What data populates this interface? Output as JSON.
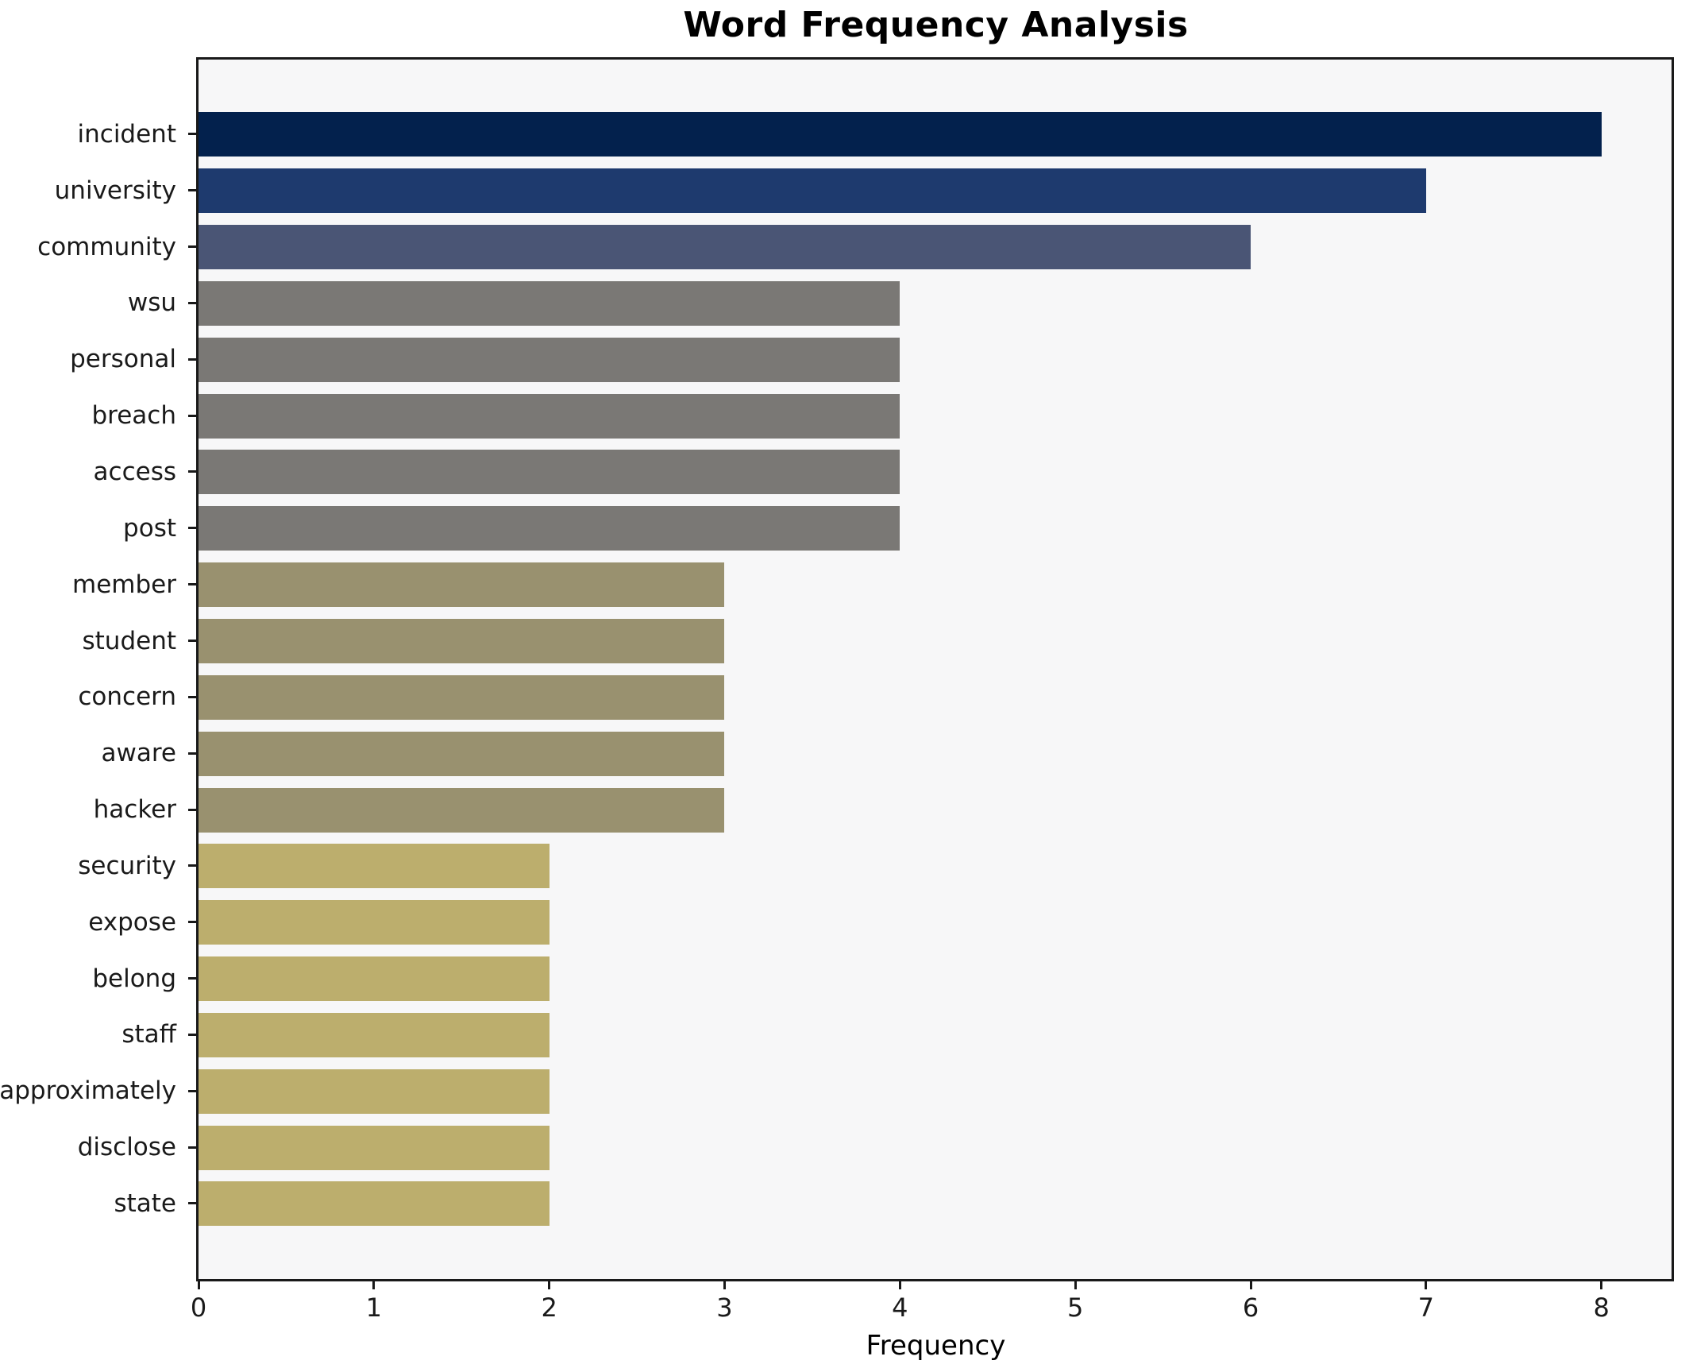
{
  "chart_data": {
    "type": "bar",
    "orientation": "horizontal",
    "title": "Word Frequency Analysis",
    "xlabel": "Frequency",
    "ylabel": "",
    "categories": [
      "incident",
      "university",
      "community",
      "wsu",
      "personal",
      "breach",
      "access",
      "post",
      "member",
      "student",
      "concern",
      "aware",
      "hacker",
      "security",
      "expose",
      "belong",
      "staff",
      "approximately",
      "disclose",
      "state"
    ],
    "values": [
      8,
      7,
      6,
      4,
      4,
      4,
      4,
      4,
      3,
      3,
      3,
      3,
      3,
      2,
      2,
      2,
      2,
      2,
      2,
      2
    ],
    "bar_colors": [
      "#03214d",
      "#1e3a6e",
      "#4a5575",
      "#7a7875",
      "#7a7875",
      "#7a7875",
      "#7a7875",
      "#7a7875",
      "#99916f",
      "#99916f",
      "#99916f",
      "#99916f",
      "#99916f",
      "#bcae6d",
      "#bcae6d",
      "#bcae6d",
      "#bcae6d",
      "#bcae6d",
      "#bcae6d",
      "#bcae6d"
    ],
    "xlim": [
      0,
      8.4
    ],
    "x_ticks": [
      0,
      1,
      2,
      3,
      4,
      5,
      6,
      7,
      8
    ],
    "grid": false,
    "legend_position": "none",
    "plot_background": "#f7f7f8",
    "figure_background": "#ffffff",
    "spine_color": "#191919"
  }
}
